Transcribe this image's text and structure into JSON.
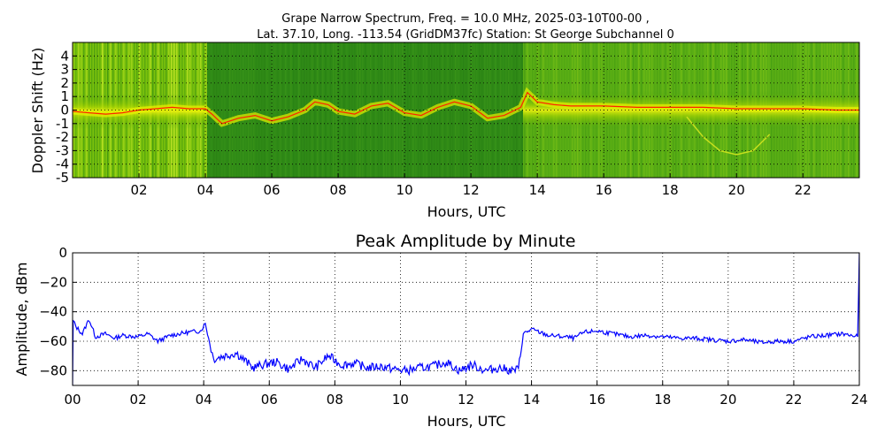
{
  "chart_data": [
    {
      "type": "heatmap",
      "title_line1": "Grape Narrow Spectrum, Freq. = 10.0 MHz, 2025-03-10T00-00 ,",
      "title_line2": "Lat.  37.10, Long. -113.54 (GridDM37fc) Station: St George Subchannel 0",
      "xlabel": "Hours, UTC",
      "ylabel": "Doppler Shift (Hz)",
      "xlim": [
        0,
        23.7
      ],
      "ylim": [
        -5,
        5
      ],
      "x_tick_labels": [
        "02",
        "04",
        "06",
        "08",
        "10",
        "12",
        "14",
        "16",
        "18",
        "20",
        "22"
      ],
      "x_ticks": [
        2,
        4,
        6,
        8,
        10,
        12,
        14,
        16,
        18,
        20,
        22
      ],
      "y_tick_labels": [
        "-5",
        "-4",
        "-3",
        "-2",
        "-1",
        "0",
        "1",
        "2",
        "3",
        "4"
      ],
      "y_ticks": [
        -5,
        -4,
        -3,
        -2,
        -1,
        0,
        1,
        2,
        3,
        4
      ],
      "grid": true,
      "colormap": "green-yellow-red",
      "colors": {
        "low": "#2e8b1a",
        "mid": "#c8e000",
        "high": "#ff2a00"
      },
      "doppler_trace": {
        "x": [
          0.0,
          0.5,
          1.0,
          1.5,
          2.0,
          2.5,
          3.0,
          3.5,
          4.0,
          4.2,
          4.5,
          5.0,
          5.5,
          6.0,
          6.5,
          7.0,
          7.3,
          7.7,
          8.0,
          8.5,
          9.0,
          9.5,
          10.0,
          10.5,
          11.0,
          11.5,
          12.0,
          12.5,
          13.0,
          13.5,
          13.7,
          14.0,
          14.5,
          15.0,
          16.0,
          17.0,
          18.0,
          19.0,
          20.0,
          21.0,
          22.0,
          23.0,
          23.7
        ],
        "y": [
          -0.1,
          -0.2,
          -0.3,
          -0.2,
          0.0,
          0.1,
          0.2,
          0.1,
          0.1,
          -0.3,
          -1.0,
          -0.6,
          -0.4,
          -0.8,
          -0.5,
          0.0,
          0.6,
          0.4,
          -0.1,
          -0.3,
          0.3,
          0.5,
          -0.2,
          -0.4,
          0.2,
          0.6,
          0.3,
          -0.6,
          -0.4,
          0.2,
          1.3,
          0.6,
          0.4,
          0.3,
          0.3,
          0.2,
          0.2,
          0.2,
          0.1,
          0.1,
          0.1,
          0.0,
          0.0
        ]
      },
      "arc_trace": {
        "x": [
          18.5,
          19.0,
          19.5,
          20.0,
          20.5,
          21.0
        ],
        "y": [
          -0.5,
          -2.0,
          -3.0,
          -3.3,
          -3.0,
          -1.8
        ]
      }
    },
    {
      "type": "line",
      "title": "Peak Amplitude by Minute",
      "xlabel": "Hours, UTC",
      "ylabel": "Amplitude, dBm",
      "xlim": [
        0,
        24
      ],
      "ylim": [
        -90,
        0
      ],
      "x_tick_labels": [
        "00",
        "02",
        "04",
        "06",
        "08",
        "10",
        "12",
        "14",
        "16",
        "18",
        "20",
        "22",
        "24"
      ],
      "x_ticks": [
        0,
        2,
        4,
        6,
        8,
        10,
        12,
        14,
        16,
        18,
        20,
        22,
        24
      ],
      "y_tick_labels": [
        "0",
        "−20",
        "−40",
        "−60",
        "−80"
      ],
      "y_ticks": [
        0,
        -20,
        -40,
        -60,
        -80
      ],
      "grid": true,
      "line_color": "#0000ff",
      "series": [
        {
          "x": [
            0.0,
            0.02,
            0.1,
            0.3,
            0.5,
            0.7,
            1.0,
            1.3,
            1.5,
            2.0,
            2.3,
            2.6,
            3.0,
            3.5,
            3.9,
            4.05,
            4.15,
            4.3,
            4.6,
            5.0,
            5.5,
            5.8,
            6.2,
            6.6,
            7.0,
            7.4,
            7.8,
            8.2,
            8.6,
            9.0,
            9.4,
            9.8,
            10.2,
            10.6,
            11.0,
            11.4,
            11.8,
            12.2,
            12.6,
            13.0,
            13.4,
            13.6,
            13.75,
            14.0,
            14.5,
            15.0,
            15.3,
            15.6,
            16.0,
            16.5,
            17.0,
            17.5,
            18.0,
            18.5,
            19.0,
            19.5,
            20.0,
            20.5,
            21.0,
            21.5,
            22.0,
            22.5,
            23.0,
            23.5,
            23.95,
            24.0
          ],
          "values": [
            -90,
            -46,
            -50,
            -55,
            -45,
            -57,
            -55,
            -58,
            -56,
            -57,
            -55,
            -60,
            -56,
            -54,
            -53,
            -48,
            -58,
            -72,
            -70,
            -68,
            -78,
            -76,
            -74,
            -79,
            -72,
            -78,
            -70,
            -76,
            -75,
            -78,
            -77,
            -79,
            -80,
            -78,
            -77,
            -74,
            -80,
            -76,
            -80,
            -78,
            -80,
            -79,
            -55,
            -52,
            -56,
            -57,
            -58,
            -54,
            -53,
            -55,
            -57,
            -56,
            -57,
            -58,
            -58,
            -59,
            -60,
            -59,
            -61,
            -60,
            -60,
            -57,
            -56,
            -55,
            -57,
            0
          ]
        }
      ]
    }
  ]
}
